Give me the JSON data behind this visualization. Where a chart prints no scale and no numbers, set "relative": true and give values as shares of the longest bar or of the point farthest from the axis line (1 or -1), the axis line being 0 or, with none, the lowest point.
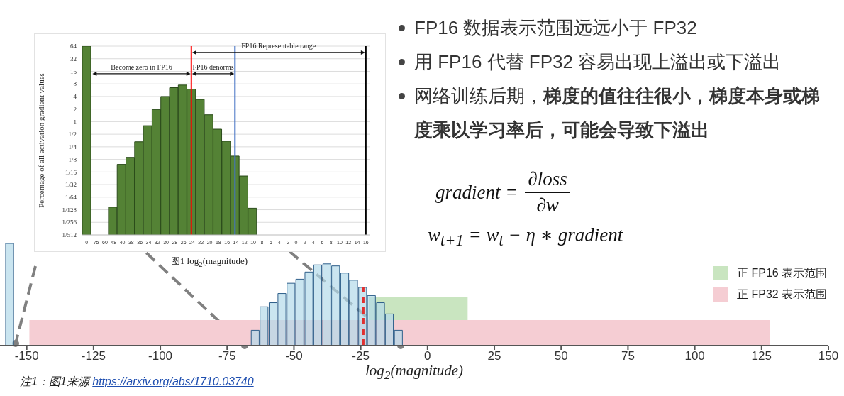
{
  "chart_data": [
    {
      "type": "bar",
      "xlabel": "log$_{2}$(magnitude)",
      "x": [
        -156.5,
        -64.6,
        -61.3,
        -57.9,
        -54.6,
        -51.2,
        -47.9,
        -44.5,
        -41.2,
        -37.8,
        -34.5,
        -31.1,
        -27.8,
        -24.4,
        -21.1,
        -17.7,
        -14.4,
        -11
      ],
      "values": [
        1,
        0.15,
        0.38,
        0.42,
        0.51,
        0.61,
        0.65,
        0.72,
        0.79,
        0.8,
        0.78,
        0.71,
        0.64,
        0.57,
        0.49,
        0.42,
        0.31,
        0.15
      ],
      "relative": true,
      "color": "#b4daea",
      "xlim": [
        -160,
        150
      ],
      "xticks": [
        -150,
        -125,
        -100,
        -75,
        -50,
        -25,
        0,
        25,
        50,
        75,
        100,
        125,
        150
      ],
      "bands": [
        {
          "axis": "x",
          "from": -22,
          "to": 15,
          "label": "正 FP16 表示范围",
          "color": "#c9e5c0"
        },
        {
          "axis": "x",
          "from": -149,
          "to": 128,
          "label": "正 FP32 表示范围",
          "color": "#f5cdd3"
        }
      ],
      "ref_lines": [
        {
          "axis": "x",
          "value": -24,
          "color": "#e03030",
          "line_style": "dashed"
        }
      ],
      "legend": "right",
      "annotations": [
        "注1：图1来源 https://arxiv.org/abs/1710.03740"
      ]
    },
    {
      "type": "bar",
      "ylabel": "Percentage of all activation gradient values",
      "xlabel": "图1 log$_{2}$(magnitude)",
      "categories": [
        "0",
        "-75",
        "-60",
        "-48",
        "-40",
        "-38",
        "-36",
        "-34",
        "-32",
        "-30",
        "-28",
        "-26",
        "-24",
        "-22",
        "-20",
        "-18",
        "-16",
        "-14",
        "-12",
        "-10",
        "-8",
        "-6",
        "-4",
        "-2",
        "0",
        "2",
        "4",
        "6",
        "8",
        "10",
        "12",
        "14",
        "16"
      ],
      "values": [
        64,
        null,
        null,
        0.009,
        0.095,
        0.14,
        0.33,
        0.8,
        1.95,
        4,
        6.5,
        7.5,
        6,
        3.4,
        1.46,
        0.66,
        0.34,
        0.15,
        0.05,
        0.0085,
        null,
        null,
        null,
        null,
        null,
        null,
        null,
        null,
        null,
        null,
        null,
        null,
        null
      ],
      "color": "#548235",
      "log": true,
      "ylim": [
        0.001953125,
        64
      ],
      "yticks": [
        {
          "value": 0.001953125,
          "label": "1/512"
        },
        {
          "value": 0.00390625,
          "label": "1/256"
        },
        {
          "value": 0.0078125,
          "label": "1/128"
        },
        {
          "value": 0.015625,
          "label": "1/64"
        },
        {
          "value": 0.03125,
          "label": "1/32"
        },
        {
          "value": 0.0625,
          "label": "1/16"
        },
        {
          "value": 0.125,
          "label": "1/8"
        },
        {
          "value": 0.25,
          "label": "1/4"
        },
        {
          "value": 0.5,
          "label": "1/2"
        },
        1,
        2,
        4,
        8,
        16,
        32,
        64
      ],
      "grid": "y",
      "ref_lines": [
        {
          "axis": "x",
          "value": "-24",
          "color": "#ff0000"
        },
        {
          "axis": "x",
          "value": "-14",
          "color": "#4472c4"
        },
        {
          "axis": "x",
          "value": "16",
          "color": "#000000"
        }
      ],
      "annotations": [
        "Become zero in FP16",
        "FP16 denorms",
        "FP16 Representable range"
      ]
    },
    {
      "type": "other",
      "annotations": [
        "FP16 数据表示范围远远小于 FP32",
        "用 FP16 代替 FP32 容易出现上溢出或下溢出",
        "网络训练后期，",
        "梯度的值往往很小，梯度本身或梯度乘以学习率后，可能会导致下溢出",
        "gradient =",
        "∂loss",
        "∂w",
        "w$_{t+1}$ = w$_{t}$ − η ∗ gradient"
      ]
    }
  ]
}
